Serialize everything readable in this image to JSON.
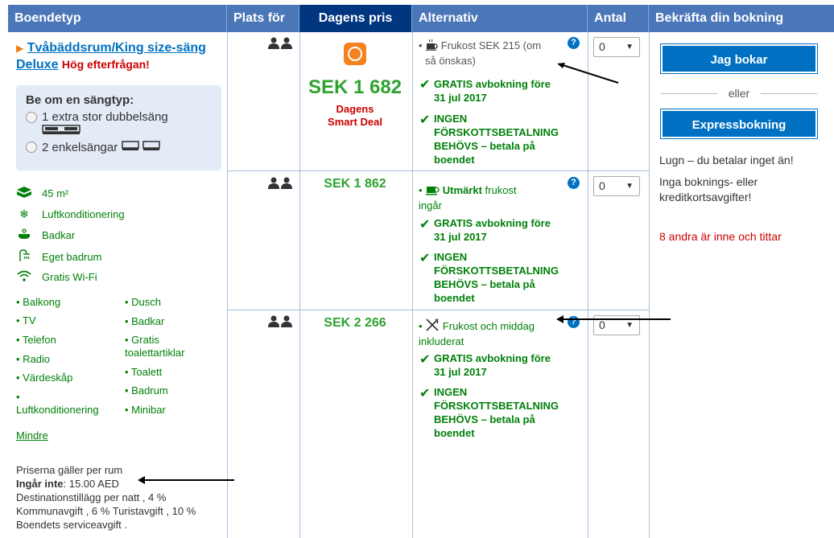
{
  "header": {
    "col_type": "Boendetyp",
    "col_guests": "Plats för",
    "col_price": "Dagens pris",
    "col_options": "Alternativ",
    "col_qty": "Antal",
    "col_confirm": "Bekräfta din bokning"
  },
  "room": {
    "name_line1": "Tvåbäddsrum/King size-säng",
    "name_line2": "Deluxe",
    "high_demand": "Hög efterfrågan!",
    "bed_title": "Be om en sängtyp:",
    "bed_options": [
      "1 extra stor dubbelsäng",
      "2 enkelsängar"
    ],
    "facilities": [
      {
        "icon": "size-icon",
        "label": "45 m²"
      },
      {
        "icon": "snowflake-icon",
        "label": "Luftkonditionering"
      },
      {
        "icon": "bathtub-icon",
        "label": "Badkar"
      },
      {
        "icon": "shower-icon",
        "label": "Eget badrum"
      },
      {
        "icon": "wifi-icon",
        "label": "Gratis Wi-Fi"
      }
    ],
    "amenities_left": [
      "• Balkong",
      "• TV",
      "• Telefon",
      "• Radio",
      "• Värdeskåp",
      "•",
      "Luftkonditionering"
    ],
    "amenities_right": [
      "• Dusch",
      "• Badkar",
      "• Gratis",
      "toalettartiklar",
      "• Toalett",
      "• Badrum",
      "• Minibar"
    ],
    "less_link": "Mindre",
    "price_note_line1": "Priserna gäller per rum",
    "not_included_label": "Ingår inte",
    "not_included_text": ": 15.00 AED",
    "price_note_rest": [
      "Destinationstillägg per natt , 4 %",
      "Kommunavgift , 6 % Turistavgift , 10 %",
      "Boendets serviceavgift ."
    ]
  },
  "rows": [
    {
      "price": "SEK 1 682",
      "deal_label_1": "Dagens",
      "deal_label_2": "Smart Deal",
      "meal_line1": "Frukost SEK 215 (om",
      "meal_line2": "så önskas)",
      "cancel_1": "GRATIS avbokning före",
      "cancel_2": "31 jul 2017",
      "prepay_1": "INGEN",
      "prepay_2": "FÖRSKOTTSBETALNING",
      "prepay_3": "BEHÖVS – betala på",
      "prepay_4": "boendet",
      "qty": "0"
    },
    {
      "price": "SEK 1 862",
      "meal_bold": "Utmärkt",
      "meal_rest": " frukost",
      "meal_line2": "ingår",
      "cancel_1": "GRATIS avbokning före",
      "cancel_2": "31 jul 2017",
      "prepay_1": "INGEN",
      "prepay_2": "FÖRSKOTTSBETALNING",
      "prepay_3": "BEHÖVS – betala på",
      "prepay_4": "boendet",
      "qty": "0"
    },
    {
      "price": "SEK 2 266",
      "meal_line1": "Frukost och middag",
      "meal_line2": "inkluderat",
      "cancel_1": "GRATIS avbokning före",
      "cancel_2": "31 jul 2017",
      "prepay_1": "INGEN",
      "prepay_2": "FÖRSKOTTSBETALNING",
      "prepay_3": "BEHÖVS – betala på",
      "prepay_4": "boendet",
      "qty": "0"
    }
  ],
  "confirm": {
    "book_button": "Jag bokar",
    "or": "eller",
    "express_button": "Expressbokning",
    "calm_1": "Lugn – du betalar inget än!",
    "calm_2": "Inga boknings- eller",
    "calm_3": "kreditkortsavgifter!",
    "watching": "8 andra är inne och tittar"
  },
  "colors": {
    "header_blue": "#4b76b8",
    "price_header": "#003580",
    "button_blue": "#0071c2",
    "green": "#008009",
    "price_green": "#2fa22f",
    "red": "#cc0000"
  }
}
